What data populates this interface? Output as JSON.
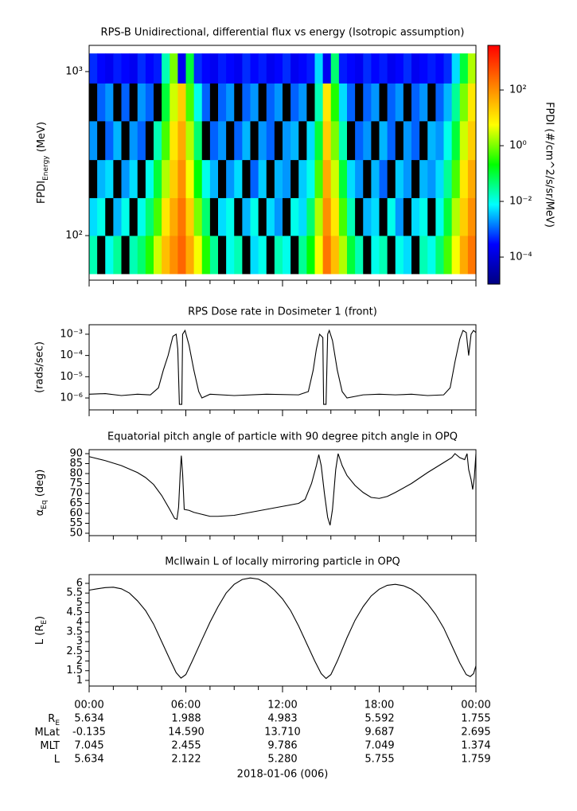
{
  "chart_data": [
    {
      "type": "heatmap",
      "title": "RPS-B  Unidirectional, differential flux vs energy (Isotropic assumption)",
      "ylabel": {
        "text": "FPDI",
        "sub": "Energy",
        "unit": " (MeV)"
      },
      "ylog": true,
      "xlim": [
        0,
        24
      ],
      "xticks": [
        0,
        6,
        12,
        18,
        24
      ],
      "xminorticks": [
        1.5,
        3,
        4.5,
        7.5,
        9,
        10.5,
        13.5,
        15,
        16.5,
        19.5,
        21,
        22.5
      ],
      "ylim": [
        53.5,
        1445
      ],
      "yticks": [
        {
          "value": 100,
          "label": "10²"
        },
        {
          "value": 1000,
          "label": "10³"
        }
      ],
      "x_bins": [
        0,
        0.5,
        1,
        1.5,
        2,
        2.5,
        3,
        3.5,
        4,
        4.5,
        5,
        5.5,
        6,
        6.5,
        7,
        7.5,
        8,
        8.5,
        9,
        9.5,
        10,
        10.5,
        11,
        11.5,
        12,
        12.5,
        13,
        13.5,
        14,
        14.5,
        15,
        15.5,
        16,
        16.5,
        17,
        17.5,
        18,
        18.5,
        19,
        19.5,
        20,
        20.5,
        21,
        21.5,
        22,
        22.5,
        23,
        23.5,
        24
      ],
      "y_bins": [
        58.5,
        100,
        170,
        290,
        500,
        850,
        1290
      ],
      "null_color": "#000000",
      "z": [
        [
          0.02,
          null,
          0.01,
          0.03,
          null,
          0.02,
          0.05,
          0.3,
          3,
          30,
          100,
          300,
          50,
          5,
          0.3,
          0.03,
          null,
          0.01,
          0.02,
          null,
          0.005,
          0.01,
          null,
          0.02,
          0.01,
          null,
          0.03,
          0.2,
          5,
          200,
          30,
          2,
          0.1,
          0.02,
          null,
          0.01,
          0.02,
          null,
          0.01,
          0.005,
          null,
          0.02,
          0.01,
          0.05,
          0.5,
          5,
          50,
          200
        ],
        [
          0.005,
          0.01,
          null,
          0.003,
          0.01,
          null,
          0.01,
          0.05,
          0.5,
          10,
          50,
          200,
          20,
          1,
          0.05,
          null,
          0.005,
          0.01,
          null,
          0.003,
          0.01,
          null,
          0.005,
          0.002,
          null,
          0.01,
          0.005,
          0.05,
          2,
          100,
          10,
          0.5,
          0.02,
          null,
          0.003,
          0.005,
          null,
          0.01,
          0.002,
          null,
          0.005,
          0.01,
          null,
          0.01,
          0.1,
          2,
          20,
          100
        ],
        [
          null,
          0.003,
          0.005,
          null,
          0.002,
          0.005,
          null,
          0.01,
          0.1,
          2,
          20,
          100,
          5,
          0.2,
          0.01,
          0.003,
          null,
          0.002,
          0.005,
          null,
          0.001,
          0.004,
          null,
          0.003,
          0.002,
          null,
          0.004,
          0.01,
          0.5,
          50,
          3,
          0.1,
          0.005,
          0.002,
          null,
          0.003,
          0.001,
          null,
          0.004,
          0.002,
          null,
          0.003,
          0.002,
          0.005,
          0.03,
          0.5,
          10,
          50
        ],
        [
          0.002,
          null,
          0.001,
          0.003,
          null,
          0.002,
          0.001,
          null,
          0.02,
          0.5,
          10,
          50,
          2,
          0.05,
          null,
          0.001,
          0.002,
          null,
          0.001,
          0.003,
          null,
          0.002,
          0.001,
          null,
          0.002,
          0.003,
          null,
          0.005,
          0.1,
          20,
          1,
          0.02,
          null,
          0.001,
          0.002,
          null,
          0.003,
          0.001,
          null,
          0.002,
          0.001,
          null,
          0.003,
          0.002,
          0.01,
          0.1,
          3,
          20
        ],
        [
          null,
          0.001,
          0.002,
          null,
          0.001,
          null,
          0.002,
          0.001,
          null,
          0.1,
          3,
          20,
          0.5,
          0.01,
          0.001,
          null,
          0.001,
          0.002,
          null,
          0.001,
          0.002,
          null,
          0.001,
          0.002,
          null,
          0.001,
          0.002,
          null,
          0.02,
          10,
          0.3,
          0.005,
          0.001,
          null,
          0.001,
          0.002,
          null,
          0.001,
          0.002,
          null,
          0.001,
          0.002,
          null,
          0.001,
          0.003,
          0.03,
          1,
          10
        ],
        [
          0.0005,
          0.0003,
          0.0002,
          0.0004,
          0.0003,
          0.0002,
          0.0005,
          0.0003,
          0.0004,
          0.02,
          1,
          0.0002,
          0.1,
          0.0005,
          0.0003,
          0.0002,
          0.0004,
          0.0003,
          0.0002,
          0.0005,
          0.0003,
          0.0004,
          0.0002,
          0.0003,
          0.0005,
          0.0002,
          0.0003,
          0.0004,
          0.005,
          0.0002,
          0.05,
          0.0004,
          0.0003,
          0.0002,
          0.0005,
          0.0003,
          0.0004,
          0.0002,
          0.0003,
          0.0005,
          0.0002,
          0.0003,
          0.0004,
          0.0003,
          0.0005,
          0.005,
          0.1,
          2
        ]
      ],
      "colorbar": {
        "label": "FPDI (#/cm^2/s/sr/MeV)",
        "log": true,
        "clim": [
          1.07e-05,
          4000
        ],
        "ticks": [
          {
            "value": 0.0001,
            "label": "10⁻⁴"
          },
          {
            "value": 0.01,
            "label": "10⁻²"
          },
          {
            "value": 1,
            "label": "10⁰"
          },
          {
            "value": 100,
            "label": "10²"
          }
        ],
        "colormap": [
          "#000080",
          "#0000ff",
          "#00ffff",
          "#00ff00",
          "#ffff00",
          "#ff8000",
          "#ff0000"
        ]
      }
    },
    {
      "type": "line",
      "title": "RPS  Dose rate in Dosimeter 1 (front)",
      "ylabel": "(rads/sec)",
      "ylog": true,
      "xlim": [
        0,
        24
      ],
      "xticks": [
        0,
        6,
        12,
        18,
        24
      ],
      "xminorticks": [
        1.5,
        3,
        4.5,
        7.5,
        9,
        10.5,
        13.5,
        15,
        16.5,
        19.5,
        21,
        22.5
      ],
      "ylim": [
        2.75e-07,
        0.0028
      ],
      "yticks": [
        {
          "value": 1e-06,
          "label": "10⁻⁶"
        },
        {
          "value": 1e-05,
          "label": "10⁻⁵"
        },
        {
          "value": 0.0001,
          "label": "10⁻⁴"
        },
        {
          "value": 0.001,
          "label": "10⁻³"
        }
      ],
      "series": [
        {
          "color": "#000000",
          "x": [
            0,
            1,
            2,
            3,
            3.8,
            4.3,
            4.6,
            4.9,
            5.2,
            5.4,
            5.5,
            5.6,
            5.75,
            5.8,
            5.95,
            6.2,
            6.5,
            6.8,
            7,
            7.5,
            9,
            11,
            13,
            13.6,
            13.9,
            14.1,
            14.3,
            14.5,
            14.55,
            14.7,
            14.8,
            14.9,
            15.1,
            15.4,
            15.7,
            16,
            17,
            18,
            19,
            20,
            21,
            22,
            22.4,
            22.7,
            23,
            23.2,
            23.4,
            23.55,
            23.7,
            23.85,
            24
          ],
          "values": [
            1.5e-06,
            1.6e-06,
            1.3e-06,
            1.5e-06,
            1.4e-06,
            3e-06,
            2e-05,
            0.0001,
            0.0008,
            0.001,
            0.0002,
            5e-07,
            5e-07,
            0.001,
            0.0015,
            0.0003,
            2e-05,
            2e-06,
            1e-06,
            1.5e-06,
            1.3e-06,
            1.5e-06,
            1.4e-06,
            2e-06,
            2e-05,
            0.0002,
            0.001,
            0.0007,
            5e-07,
            5e-07,
            0.001,
            0.0015,
            0.0005,
            2e-05,
            2e-06,
            1e-06,
            1.4e-06,
            1.5e-06,
            1.4e-06,
            1.5e-06,
            1.3e-06,
            1.4e-06,
            3e-06,
            5e-05,
            0.0006,
            0.0015,
            0.0012,
            0.0001,
            0.001,
            0.0015,
            0.0012
          ]
        }
      ]
    },
    {
      "type": "line",
      "title": "Equatorial pitch angle of particle with 90 degree pitch angle in OPQ",
      "ylabel": {
        "text": "α",
        "sub": "Eq",
        "unit": " (deg)"
      },
      "ylog": false,
      "xlim": [
        0,
        24
      ],
      "xticks": [
        0,
        6,
        12,
        18,
        24
      ],
      "xminorticks": [
        1.5,
        3,
        4.5,
        7.5,
        9,
        10.5,
        13.5,
        15,
        16.5,
        19.5,
        21,
        22.5
      ],
      "ylim": [
        48.8,
        92
      ],
      "yticks": [
        50,
        55,
        60,
        65,
        70,
        75,
        80,
        85,
        90
      ],
      "series": [
        {
          "color": "#000000",
          "x": [
            0,
            1,
            2,
            3,
            3.5,
            4,
            4.5,
            5,
            5.3,
            5.45,
            5.55,
            5.65,
            5.72,
            5.8,
            5.9,
            6.2,
            6.5,
            7,
            7.5,
            8,
            9,
            10,
            11,
            12,
            13,
            13.4,
            13.8,
            14.1,
            14.25,
            14.4,
            14.6,
            14.8,
            14.95,
            15.1,
            15.3,
            15.45,
            15.7,
            16,
            16.5,
            17,
            17.5,
            18,
            18.5,
            19,
            20,
            21,
            22,
            22.5,
            22.7,
            23,
            23.3,
            23.45,
            23.55,
            23.7,
            23.8,
            23.9,
            24
          ],
          "values": [
            88.5,
            86.5,
            84,
            80.5,
            78,
            74.5,
            69,
            62,
            57.5,
            57,
            63,
            80,
            89,
            80,
            62,
            61.5,
            60.5,
            59.5,
            58.5,
            58.5,
            59,
            60.5,
            62,
            63.5,
            65,
            67,
            75,
            84,
            89.5,
            84,
            70,
            58,
            54,
            62,
            82,
            90,
            84,
            79,
            74,
            70.5,
            68,
            67.5,
            68.5,
            70.5,
            75,
            80.5,
            85.5,
            88,
            90,
            88,
            87,
            90,
            82,
            77,
            72,
            78,
            90
          ]
        }
      ]
    },
    {
      "type": "line",
      "title": "McIlwain L of locally mirroring particle in OPQ",
      "ylabel": {
        "text": "L (R",
        "sub": "E",
        "unit": ")"
      },
      "ylog": false,
      "xlim": [
        0,
        24
      ],
      "xticks": [
        {
          "value": 0,
          "label": "00:00"
        },
        {
          "value": 6,
          "label": "06:00"
        },
        {
          "value": 12,
          "label": "12:00"
        },
        {
          "value": 18,
          "label": "18:00"
        },
        {
          "value": 24,
          "label": "00:00"
        }
      ],
      "xminorticks": [
        1.5,
        3,
        4.5,
        7.5,
        9,
        10.5,
        13.5,
        15,
        16.5,
        19.5,
        21,
        22.5
      ],
      "ylim": [
        0.71,
        6.45
      ],
      "yticks": [
        1,
        1.5,
        2,
        2.5,
        3,
        3.5,
        4,
        4.5,
        5,
        5.5,
        6
      ],
      "series": [
        {
          "color": "#000000",
          "x": [
            0,
            0.5,
            1,
            1.5,
            2,
            2.5,
            3,
            3.5,
            4,
            4.5,
            5,
            5.4,
            5.7,
            6,
            6.4,
            7,
            7.5,
            8,
            8.5,
            9,
            9.5,
            10,
            10.5,
            11,
            11.5,
            12,
            12.5,
            13,
            13.5,
            14,
            14.4,
            14.7,
            15,
            15.4,
            16,
            16.5,
            17,
            17.5,
            18,
            18.5,
            19,
            19.5,
            20,
            20.5,
            21,
            21.5,
            22,
            22.5,
            23,
            23.4,
            23.65,
            23.85,
            24
          ],
          "values": [
            5.65,
            5.72,
            5.78,
            5.8,
            5.72,
            5.5,
            5.1,
            4.6,
            3.9,
            3.0,
            2.1,
            1.4,
            1.12,
            1.3,
            2.0,
            3.1,
            4.0,
            4.8,
            5.5,
            5.95,
            6.2,
            6.28,
            6.22,
            6.0,
            5.65,
            5.2,
            4.6,
            3.8,
            2.9,
            2.0,
            1.35,
            1.1,
            1.3,
            2.0,
            3.2,
            4.1,
            4.8,
            5.35,
            5.7,
            5.9,
            5.95,
            5.88,
            5.7,
            5.4,
            4.95,
            4.4,
            3.7,
            2.8,
            1.9,
            1.3,
            1.2,
            1.35,
            1.75
          ]
        }
      ]
    }
  ],
  "ephemeris": {
    "rows": [
      {
        "label": "R",
        "sub": "E",
        "values": [
          "5.634",
          "1.988",
          "4.983",
          "5.592",
          "1.755"
        ]
      },
      {
        "label": "MLat",
        "values": [
          "-0.135",
          "14.590",
          "13.710",
          "9.687",
          "2.695"
        ]
      },
      {
        "label": "MLT",
        "values": [
          "7.045",
          "2.455",
          "9.786",
          "7.049",
          "1.374"
        ]
      },
      {
        "label": "L",
        "values": [
          "5.634",
          "2.122",
          "5.280",
          "5.755",
          "1.759"
        ]
      }
    ],
    "date": "2018-01-06 (006)"
  }
}
